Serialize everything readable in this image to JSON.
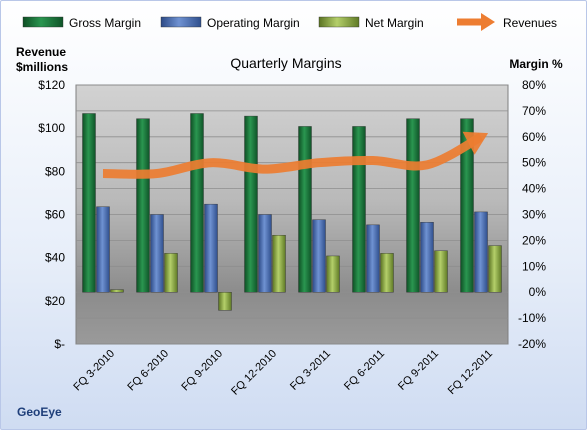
{
  "chart_data": {
    "type": "bar",
    "title": "Quarterly Margins",
    "categories": [
      "FQ 3-2010",
      "FQ 6-2010",
      "FQ 9-2010",
      "FQ 12-2010",
      "FQ 3-2011",
      "FQ 6-2011",
      "FQ 9-2011",
      "FQ 12-2011"
    ],
    "series": [
      {
        "name": "Gross Margin",
        "type": "bar",
        "axis": "right",
        "color": "#1f7a3d",
        "values": [
          69,
          67,
          69,
          68,
          64,
          64,
          67,
          67
        ]
      },
      {
        "name": "Operating Margin",
        "type": "bar",
        "axis": "right",
        "color": "#4a6fb5",
        "values": [
          33,
          30,
          34,
          30,
          28,
          26,
          27,
          31
        ]
      },
      {
        "name": "Net Margin",
        "type": "bar",
        "axis": "right",
        "color": "#8fae3a",
        "values": [
          1,
          15,
          -7,
          22,
          14,
          15,
          16,
          18
        ]
      },
      {
        "name": "Revenues",
        "type": "line",
        "axis": "left",
        "color": "#ed7d31",
        "values": [
          79,
          79,
          84,
          81,
          84,
          85,
          83,
          96
        ]
      }
    ],
    "left_axis": {
      "label_line1": "Revenue",
      "label_line2": "$millions",
      "range": [
        0,
        120
      ],
      "ticks": [
        "$-",
        "$20",
        "$40",
        "$60",
        "$80",
        "$100",
        "$120"
      ]
    },
    "right_axis": {
      "label": "Margin %",
      "range": [
        -20,
        80
      ],
      "ticks": [
        "-20%",
        "-10%",
        "0%",
        "10%",
        "20%",
        "30%",
        "40%",
        "50%",
        "60%",
        "70%",
        "80%"
      ]
    },
    "legend_position": "top",
    "grid": true,
    "source_label": "GeoEye"
  }
}
